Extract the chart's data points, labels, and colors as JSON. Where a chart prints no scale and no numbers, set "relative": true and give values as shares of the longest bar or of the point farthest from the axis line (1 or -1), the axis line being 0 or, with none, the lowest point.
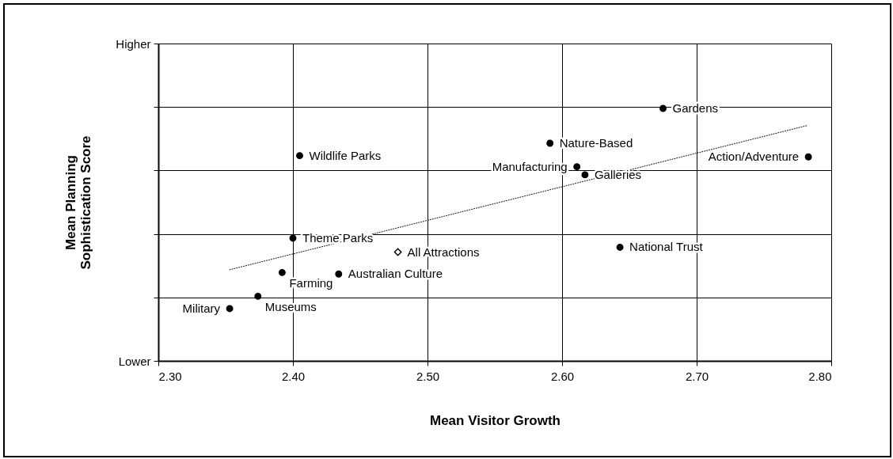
{
  "chart_data": {
    "type": "scatter",
    "xlabel": "Mean Visitor Growth",
    "ylabel": "Mean Planning Sophistication Score",
    "relative": true,
    "xlim": [
      2.3,
      2.8
    ],
    "xticks": [
      {
        "value": 2.3,
        "label": "2.30"
      },
      {
        "value": 2.4,
        "label": "2.40"
      },
      {
        "value": 2.5,
        "label": "2.50"
      },
      {
        "value": 2.6,
        "label": "2.60"
      },
      {
        "value": 2.7,
        "label": "2.70"
      },
      {
        "value": 2.8,
        "label": "2.80"
      }
    ],
    "grid": true,
    "legend": false,
    "series": [
      {
        "marker": "circle",
        "color": "#000000",
        "x": [
          2.405,
          2.4,
          2.392,
          2.434,
          2.374,
          2.353,
          2.675,
          2.591,
          2.611,
          2.617,
          2.783,
          2.643
        ],
        "values": [
          0.813,
          0.486,
          0.35,
          0.344,
          0.256,
          0.207,
          1,
          0.862,
          0.769,
          0.737,
          0.808,
          0.45
        ]
      },
      {
        "marker": "diamond",
        "name": "All Attractions",
        "color": "#000000",
        "x": [
          2.478
        ],
        "values": [
          0.431
        ]
      },
      {
        "type": "line",
        "line_style": "dotted",
        "color": "#000000",
        "x": [
          2.353,
          2.782
        ],
        "values": [
          0.361,
          0.932
        ]
      }
    ],
    "annotations": [
      "Higher",
      "Lower",
      {
        "text": "Wildlife Parks",
        "x": 2.405,
        "y": 0.813
      },
      {
        "text": "Theme Parks",
        "x": 2.4,
        "y": 0.486
      },
      {
        "text": "Farming",
        "x": 2.392,
        "y": 0.35
      },
      {
        "text": "Australian Culture",
        "x": 2.434,
        "y": 0.344
      },
      {
        "text": "Museums",
        "x": 2.374,
        "y": 0.256
      },
      {
        "text": "Military",
        "x": 2.353,
        "y": 0.207
      },
      {
        "text": "Gardens",
        "x": 2.675,
        "y": 1
      },
      {
        "text": "Nature-Based",
        "x": 2.591,
        "y": 0.862
      },
      {
        "text": "Manufacturing",
        "x": 2.611,
        "y": 0.769
      },
      {
        "text": "Galleries",
        "x": 2.617,
        "y": 0.737
      },
      {
        "text": "Action/Adventure",
        "x": 2.783,
        "y": 0.808
      },
      {
        "text": "National Trust",
        "x": 2.643,
        "y": 0.45
      }
    ]
  }
}
